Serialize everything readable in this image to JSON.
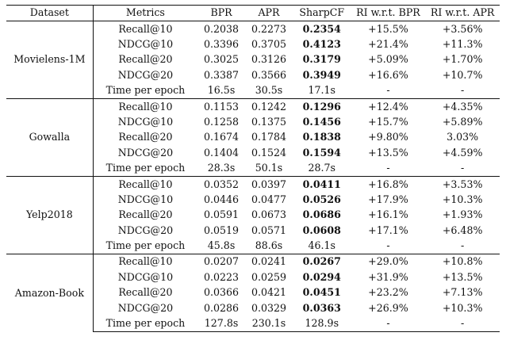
{
  "table": {
    "headers": [
      "Dataset",
      "Metrics",
      "BPR",
      "APR",
      "SharpCF",
      "RI w.r.t. BPR",
      "RI w.r.t. APR"
    ],
    "groups": [
      {
        "dataset": "Movielens-1M",
        "rows": [
          {
            "metric": "Recall@10",
            "bpr": "0.2038",
            "apr": "0.2273",
            "sharpcf": "0.2354",
            "ri_bpr": "+15.5%",
            "ri_apr": "+3.56%"
          },
          {
            "metric": "NDCG@10",
            "bpr": "0.3396",
            "apr": "0.3705",
            "sharpcf": "0.4123",
            "ri_bpr": "+21.4%",
            "ri_apr": "+11.3%"
          },
          {
            "metric": "Recall@20",
            "bpr": "0.3025",
            "apr": "0.3126",
            "sharpcf": "0.3179",
            "ri_bpr": "+5.09%",
            "ri_apr": "+1.70%"
          },
          {
            "metric": "NDCG@20",
            "bpr": "0.3387",
            "apr": "0.3566",
            "sharpcf": "0.3949",
            "ri_bpr": "+16.6%",
            "ri_apr": "+10.7%"
          },
          {
            "metric": "Time per epoch",
            "bpr": "16.5s",
            "apr": "30.5s",
            "sharpcf": "17.1s",
            "ri_bpr": "-",
            "ri_apr": "-"
          }
        ]
      },
      {
        "dataset": "Gowalla",
        "rows": [
          {
            "metric": "Recall@10",
            "bpr": "0.1153",
            "apr": "0.1242",
            "sharpcf": "0.1296",
            "ri_bpr": "+12.4%",
            "ri_apr": "+4.35%"
          },
          {
            "metric": "NDCG@10",
            "bpr": "0.1258",
            "apr": "0.1375",
            "sharpcf": "0.1456",
            "ri_bpr": "+15.7%",
            "ri_apr": "+5.89%"
          },
          {
            "metric": "Recall@20",
            "bpr": "0.1674",
            "apr": "0.1784",
            "sharpcf": "0.1838",
            "ri_bpr": "+9.80%",
            "ri_apr": "3.03%"
          },
          {
            "metric": "NDCG@20",
            "bpr": "0.1404",
            "apr": "0.1524",
            "sharpcf": "0.1594",
            "ri_bpr": "+13.5%",
            "ri_apr": "+4.59%"
          },
          {
            "metric": "Time per epoch",
            "bpr": "28.3s",
            "apr": "50.1s",
            "sharpcf": "28.7s",
            "ri_bpr": "-",
            "ri_apr": "-"
          }
        ]
      },
      {
        "dataset": "Yelp2018",
        "rows": [
          {
            "metric": "Recall@10",
            "bpr": "0.0352",
            "apr": "0.0397",
            "sharpcf": "0.0411",
            "ri_bpr": "+16.8%",
            "ri_apr": "+3.53%"
          },
          {
            "metric": "NDCG@10",
            "bpr": "0.0446",
            "apr": "0.0477",
            "sharpcf": "0.0526",
            "ri_bpr": "+17.9%",
            "ri_apr": "+10.3%"
          },
          {
            "metric": "Recall@20",
            "bpr": "0.0591",
            "apr": "0.0673",
            "sharpcf": "0.0686",
            "ri_bpr": "+16.1%",
            "ri_apr": "+1.93%"
          },
          {
            "metric": "NDCG@20",
            "bpr": "0.0519",
            "apr": "0.0571",
            "sharpcf": "0.0608",
            "ri_bpr": "+17.1%",
            "ri_apr": "+6.48%"
          },
          {
            "metric": "Time per epoch",
            "bpr": "45.8s",
            "apr": "88.6s",
            "sharpcf": "46.1s",
            "ri_bpr": "-",
            "ri_apr": "-"
          }
        ]
      },
      {
        "dataset": "Amazon-Book",
        "rows": [
          {
            "metric": "Recall@10",
            "bpr": "0.0207",
            "apr": "0.0241",
            "sharpcf": "0.0267",
            "ri_bpr": "+29.0%",
            "ri_apr": "+10.8%"
          },
          {
            "metric": "NDCG@10",
            "bpr": "0.0223",
            "apr": "0.0259",
            "sharpcf": "0.0294",
            "ri_bpr": "+31.9%",
            "ri_apr": "+13.5%"
          },
          {
            "metric": "Recall@20",
            "bpr": "0.0366",
            "apr": "0.0421",
            "sharpcf": "0.0451",
            "ri_bpr": "+23.2%",
            "ri_apr": "+7.13%"
          },
          {
            "metric": "NDCG@20",
            "bpr": "0.0286",
            "apr": "0.0329",
            "sharpcf": "0.0363",
            "ri_bpr": "+26.9%",
            "ri_apr": "+10.3%"
          },
          {
            "metric": "Time per epoch",
            "bpr": "127.8s",
            "apr": "230.1s",
            "sharpcf": "128.9s",
            "ri_bpr": "-",
            "ri_apr": "-"
          }
        ]
      }
    ]
  }
}
